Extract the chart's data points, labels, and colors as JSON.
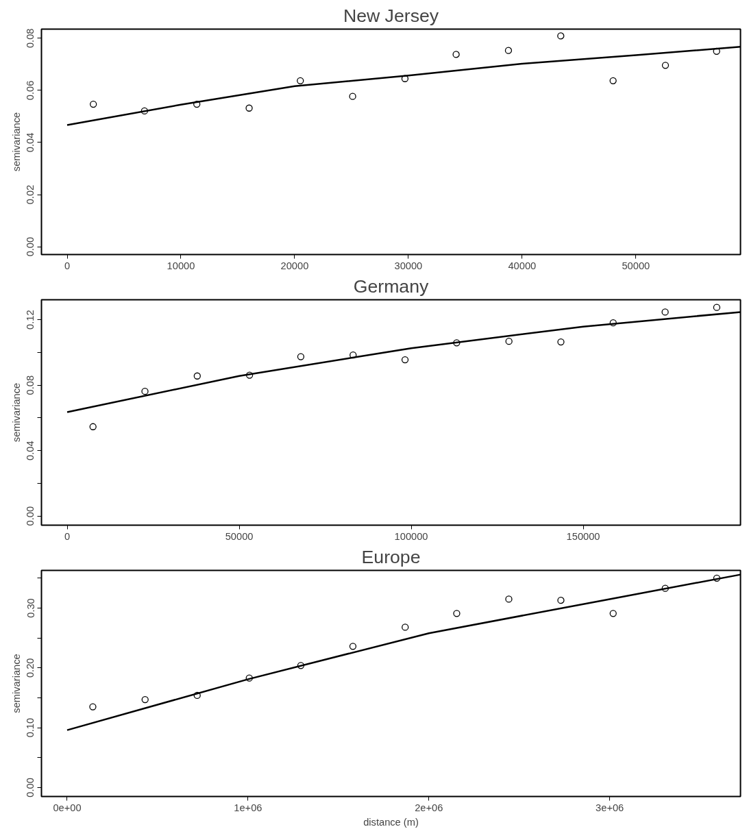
{
  "chart_data": [
    {
      "type": "scatter",
      "title": "New Jersey",
      "ylabel": "semivariance",
      "grid": false,
      "xlim": [
        -2260,
        59200
      ],
      "ylim": [
        -0.003,
        0.0835
      ],
      "xticks": [
        0,
        10000,
        20000,
        30000,
        40000,
        50000
      ],
      "yticks": [
        {
          "value": 0,
          "label": "0.00"
        },
        {
          "value": 0.02,
          "label": "0.02"
        },
        {
          "value": 0.04,
          "label": "0.04"
        },
        {
          "value": 0.06,
          "label": "0.06"
        },
        {
          "value": 0.08,
          "label": "0.08"
        }
      ],
      "series": [
        {
          "marker": "circle",
          "color": "#000000",
          "x": [
            2300,
            6800,
            11400,
            16000,
            20500,
            25100,
            29700,
            34200,
            38800,
            43400,
            48000,
            52600,
            57100
          ],
          "values": [
            0.0547,
            0.0521,
            0.0547,
            0.0532,
            0.0637,
            0.0577,
            0.0645,
            0.0738,
            0.0753,
            0.0809,
            0.0637,
            0.0696,
            0.075
          ]
        },
        {
          "type": "line",
          "marker": "none",
          "line_style": "solid",
          "color": "#000000",
          "x": [
            0,
            10000,
            20000,
            30000,
            40000,
            50000,
            59200
          ],
          "values": [
            0.0467,
            0.0545,
            0.0616,
            0.0657,
            0.0702,
            0.0735,
            0.0767
          ]
        }
      ]
    },
    {
      "type": "scatter",
      "title": "Germany",
      "ylabel": "semivariance",
      "grid": false,
      "xlim": [
        -7480,
        195700
      ],
      "ylim": [
        -0.0056,
        0.1322
      ],
      "xticks": [
        0,
        50000,
        100000,
        150000
      ],
      "yticks": [
        {
          "value": 0,
          "label": "0.00"
        },
        {
          "value": 0.02,
          "label": null
        },
        {
          "value": 0.04,
          "label": "0.04"
        },
        {
          "value": 0.06,
          "label": null
        },
        {
          "value": 0.08,
          "label": "0.08"
        },
        {
          "value": 0.1,
          "label": null
        },
        {
          "value": 0.12,
          "label": "0.12"
        }
      ],
      "series": [
        {
          "marker": "circle",
          "color": "#000000",
          "x": [
            7500,
            22600,
            37800,
            53000,
            67900,
            83100,
            98200,
            113200,
            128400,
            143500,
            158700,
            173800,
            188800
          ],
          "values": [
            0.0546,
            0.0762,
            0.0856,
            0.0861,
            0.0974,
            0.0984,
            0.0955,
            0.1059,
            0.1068,
            0.1064,
            0.1181,
            0.1247,
            0.1275
          ]
        },
        {
          "type": "line",
          "marker": "none",
          "line_style": "solid",
          "color": "#000000",
          "x": [
            0,
            50000,
            100000,
            150000,
            195700
          ],
          "values": [
            0.0635,
            0.0856,
            0.1026,
            0.1158,
            0.1247
          ]
        }
      ]
    },
    {
      "type": "scatter",
      "title": "Europe",
      "xlabel": "distance (m)",
      "ylabel": "semivariance",
      "grid": false,
      "xlim": [
        -142000,
        3723000
      ],
      "ylim": [
        -0.015,
        0.363
      ],
      "xticks": [
        {
          "value": 0,
          "label": "0e+00"
        },
        {
          "value": 1000000,
          "label": "1e+06"
        },
        {
          "value": 2000000,
          "label": "2e+06"
        },
        {
          "value": 3000000,
          "label": "3e+06"
        }
      ],
      "yticks": [
        {
          "value": 0,
          "label": "0.00"
        },
        {
          "value": 0.05,
          "label": null
        },
        {
          "value": 0.1,
          "label": "0.10"
        },
        {
          "value": 0.15,
          "label": null
        },
        {
          "value": 0.2,
          "label": "0.20"
        },
        {
          "value": 0.25,
          "label": null
        },
        {
          "value": 0.3,
          "label": "0.30"
        },
        {
          "value": 0.35,
          "label": null
        }
      ],
      "series": [
        {
          "marker": "circle",
          "color": "#000000",
          "x": [
            142000,
            431000,
            719000,
            1007000,
            1292000,
            1580000,
            1869000,
            2154000,
            2442000,
            2730000,
            3019000,
            3307000,
            3592000
          ],
          "values": [
            0.135,
            0.147,
            0.154,
            0.183,
            0.204,
            0.236,
            0.268,
            0.291,
            0.315,
            0.313,
            0.291,
            0.333,
            0.35
          ]
        },
        {
          "type": "line",
          "marker": "none",
          "line_style": "solid",
          "color": "#000000",
          "x": [
            0,
            1000000,
            2000000,
            3000000,
            3723000
          ],
          "values": [
            0.096,
            0.181,
            0.258,
            0.315,
            0.356
          ]
        }
      ]
    }
  ]
}
